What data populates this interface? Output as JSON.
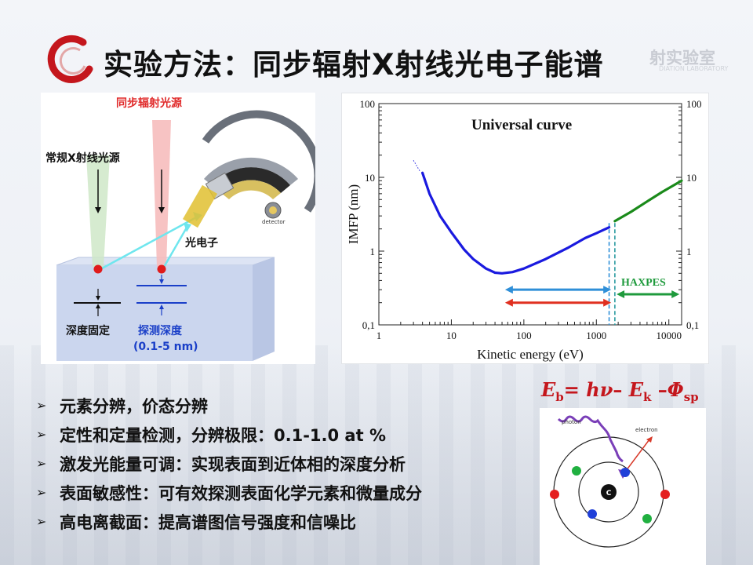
{
  "slide": {
    "title": "实验方法：同步辐射X射线光电子能谱",
    "watermark_main": "射实验室",
    "watermark_sub": "DIATION LABORATORY"
  },
  "schematic": {
    "label_synchrotron": "同步辐射光源",
    "label_conventional": "常规X射线光源",
    "label_photoelectron": "光电子",
    "label_detector": "detector",
    "label_fixed_depth": "深度固定",
    "label_probe_depth": "探测深度",
    "label_depth_range": "(0.1-5 nm)",
    "colors": {
      "synchrotron_beam": "#f5b8b8",
      "conventional_beam": "#c8e6c0",
      "sample": "#c9d5ee",
      "probe_label": "#1a3fc8",
      "source_label": "#e02a2a"
    }
  },
  "chart_data": {
    "type": "line",
    "title": "Universal curve",
    "xlabel": "Kinetic energy (eV)",
    "ylabel": "IMFP (nm)",
    "x_scale": "log",
    "y_scale": "log",
    "xlim": [
      1,
      15000
    ],
    "ylim": [
      0.1,
      100
    ],
    "x_ticks": [
      "1",
      "10",
      "100",
      "1000",
      "10000"
    ],
    "y_ticks_left": [
      "0,1",
      "1",
      "10",
      "100"
    ],
    "y_ticks_right": [
      "0,1",
      "1",
      "10",
      "100"
    ],
    "series": [
      {
        "color": "#1a1adf",
        "x": [
          4,
          5,
          7,
          10,
          15,
          20,
          30,
          40,
          50,
          70,
          100,
          200,
          400,
          700,
          1000,
          1500
        ],
        "y": [
          11.5,
          6.0,
          3.0,
          1.8,
          1.05,
          0.78,
          0.58,
          0.51,
          0.5,
          0.52,
          0.58,
          0.78,
          1.1,
          1.5,
          1.75,
          2.1
        ]
      },
      {
        "color": "#1a8a1a",
        "x": [
          1800,
          3000,
          5000,
          8000,
          15000
        ],
        "y": [
          2.55,
          3.4,
          4.7,
          6.3,
          9.0
        ]
      }
    ],
    "extrapolation": {
      "x": [
        3,
        3.7
      ],
      "y": [
        17,
        12
      ]
    },
    "annotations": [
      {
        "text": "HAXPES",
        "color": "#1e9a3c"
      }
    ],
    "arrows": [
      {
        "color": "#2f8fd8",
        "x_from": 55,
        "x_to": 1600,
        "y": 0.3
      },
      {
        "color": "#e03020",
        "x_from": 55,
        "x_to": 1600,
        "y": 0.2
      },
      {
        "color": "#1e9a3c",
        "x_from": 1900,
        "x_to": 14000,
        "y": 0.26
      }
    ],
    "guide_lines": [
      {
        "x": 1500,
        "color": "#2f8fd8"
      },
      {
        "x": 1800,
        "color": "#2a9aa0"
      }
    ]
  },
  "bullets": [
    "元素分辨，价态分辨",
    "定性和定量检测，分辨极限：0.1-1.0 at %",
    "激发光能量可调：实现表面到近体相的深度分析",
    "表面敏感性：可有效探测表面化学元素和微量成分",
    "高电离截面：提高谱图信号强度和信噪比"
  ],
  "bullet_marker": "➢",
  "formula": {
    "Eb": "E",
    "Eb_sub": "b",
    "eq": "= ",
    "hv": "hν",
    "minus1": "– ",
    "Ek": "E",
    "Ek_sub": "k",
    "minus2": " –",
    "phi": "Φ",
    "phi_sub": "sp"
  },
  "atom": {
    "label_photon": "photon",
    "label_electron": "electron",
    "label_nucleus": "C",
    "colors": {
      "photon": "#7a3fb8",
      "electron_path": "#d83a2a",
      "e_red": "#e42020",
      "e_green": "#20b040",
      "e_blue": "#2040d8"
    }
  }
}
